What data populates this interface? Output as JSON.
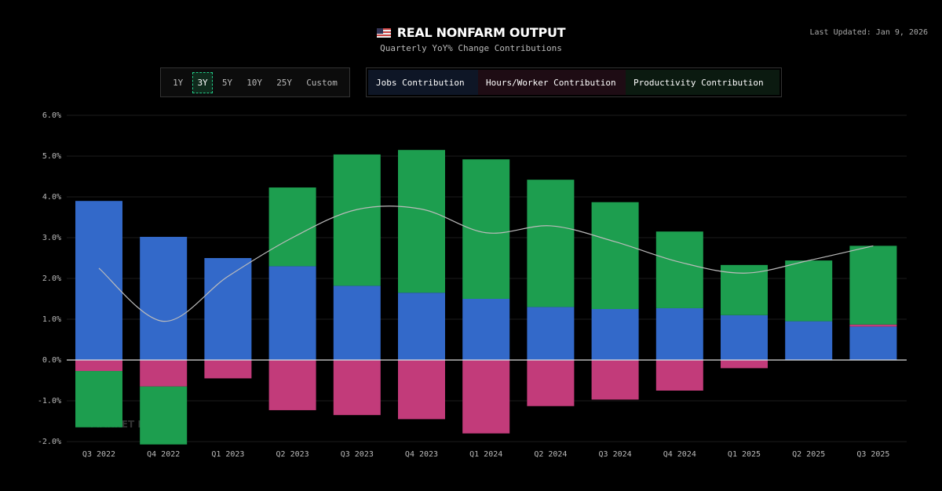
{
  "header": {
    "title": "REAL NONFARM OUTPUT",
    "flag_icon": "us-flag-icon",
    "subtitle": "Quarterly YoY% Change Contributions",
    "last_updated": "Last Updated: Jan 9, 2026"
  },
  "ranges": [
    {
      "label": "1Y"
    },
    {
      "label": "3Y",
      "active": true
    },
    {
      "label": "5Y"
    },
    {
      "label": "10Y"
    },
    {
      "label": "25Y"
    },
    {
      "label": "Custom"
    }
  ],
  "watermark": "MARKET RADAR",
  "chart_data": {
    "type": "bar",
    "stacked": true,
    "categories": [
      "Q3 2022",
      "Q4 2022",
      "Q1 2023",
      "Q2 2023",
      "Q3 2023",
      "Q4 2023",
      "Q1 2024",
      "Q2 2024",
      "Q3 2024",
      "Q4 2024",
      "Q1 2025",
      "Q2 2025",
      "Q3 2025"
    ],
    "series": [
      {
        "name": "Jobs Contribution",
        "color": "#3369c9",
        "values": [
          3.9,
          3.02,
          2.5,
          2.3,
          1.82,
          1.65,
          1.5,
          1.3,
          1.25,
          1.27,
          1.1,
          0.95,
          0.82
        ]
      },
      {
        "name": "Hours/Worker Contribution",
        "color": "#c23b7a",
        "values": [
          -0.27,
          -0.65,
          -0.45,
          -1.23,
          -1.35,
          -1.45,
          -1.8,
          -1.13,
          -0.97,
          -0.75,
          -0.2,
          0.0,
          0.05
        ]
      },
      {
        "name": "Productivity Contribution",
        "color": "#1d9e4f",
        "values": [
          -1.38,
          -1.42,
          0.0,
          1.93,
          3.22,
          3.5,
          3.42,
          3.12,
          2.62,
          1.88,
          1.23,
          1.49,
          1.93
        ]
      }
    ],
    "total_line": {
      "color": "#bbbbbb",
      "values": [
        2.25,
        0.95,
        2.05,
        3.0,
        3.69,
        3.7,
        3.12,
        3.29,
        2.9,
        2.4,
        2.13,
        2.44,
        2.8
      ]
    },
    "ylim": [
      -2,
      6
    ],
    "yticks": [
      "-2.0%",
      "-1.0%",
      "0.0%",
      "1.0%",
      "2.0%",
      "3.0%",
      "4.0%",
      "5.0%",
      "6.0%"
    ],
    "grid": true,
    "legend_placement": "top"
  }
}
